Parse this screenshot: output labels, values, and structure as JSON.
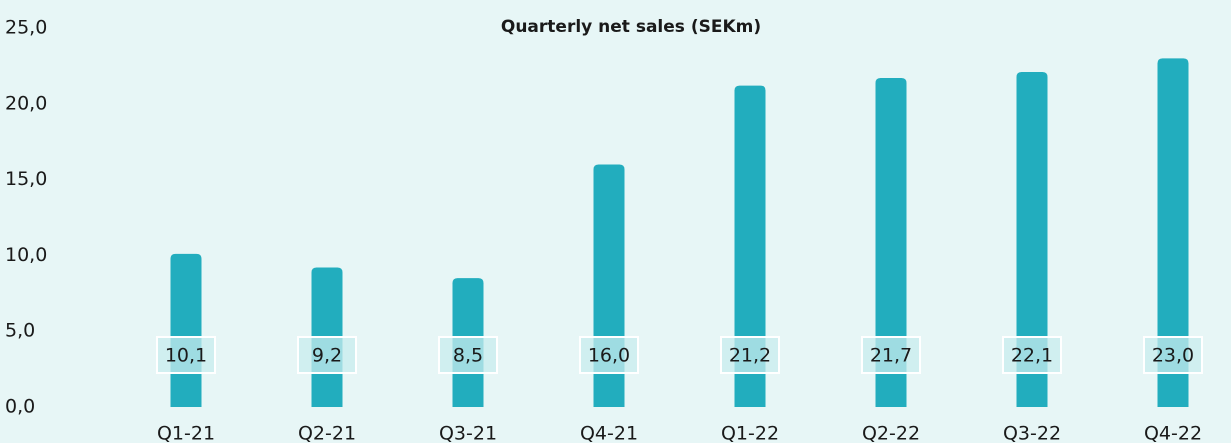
{
  "chart_data": {
    "type": "bar",
    "title": "Quarterly net sales (SEKm)",
    "categories": [
      "Q1-21",
      "Q2-21",
      "Q3-21",
      "Q4-21",
      "Q1-22",
      "Q2-22",
      "Q3-22",
      "Q4-22"
    ],
    "values": [
      10.1,
      9.2,
      8.5,
      16.0,
      21.2,
      21.7,
      22.1,
      23.0
    ],
    "value_labels": [
      "10,1",
      "9,2",
      "8,5",
      "16,0",
      "21,2",
      "21,7",
      "22,1",
      "23,0"
    ],
    "color": "#22adbe",
    "ylim": [
      0,
      25
    ],
    "yticks": [
      {
        "value": 0,
        "label": "0,0"
      },
      {
        "value": 5,
        "label": "5,0"
      },
      {
        "value": 10,
        "label": "10,0"
      },
      {
        "value": 15,
        "label": "15,0"
      },
      {
        "value": 20,
        "label": "20,0"
      },
      {
        "value": 25,
        "label": "25,0"
      }
    ],
    "grid": false
  }
}
